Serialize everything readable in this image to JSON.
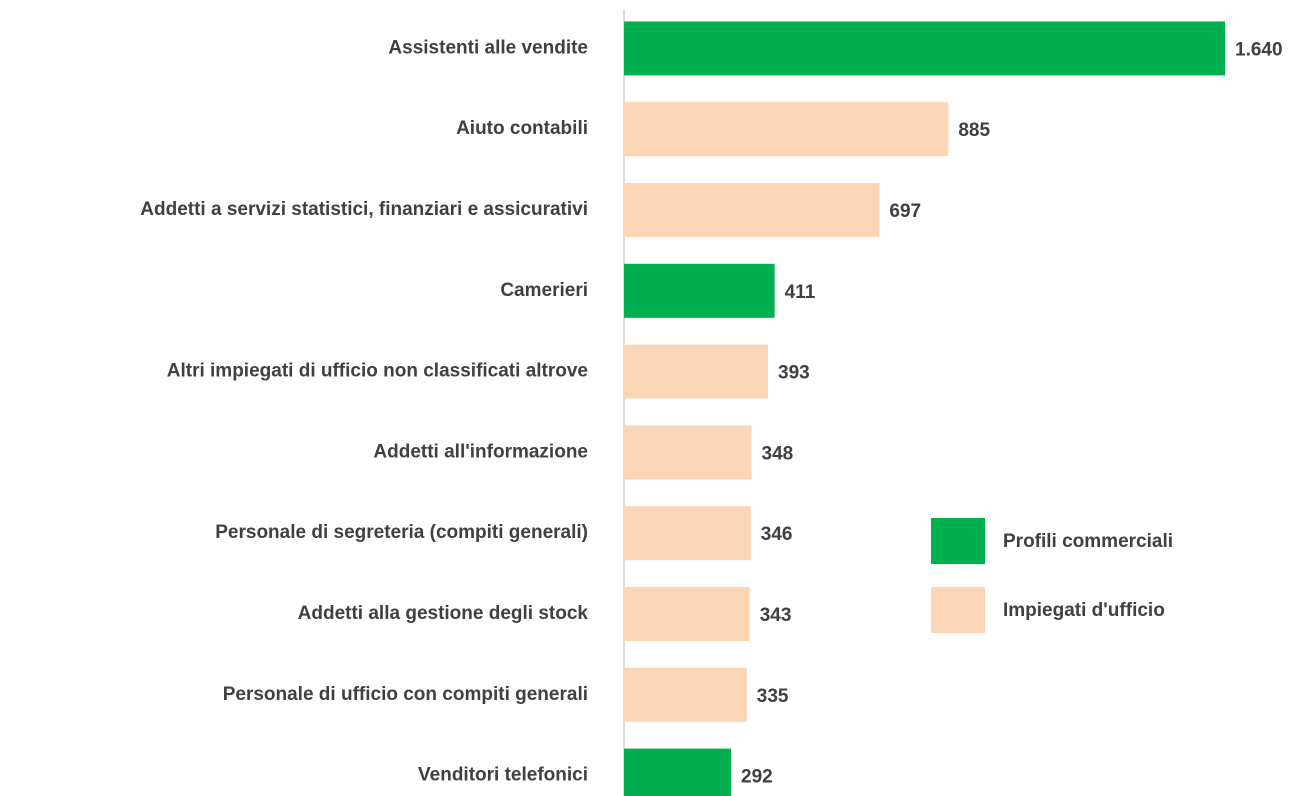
{
  "chart_data": {
    "type": "hbar",
    "categories": [
      "Assistenti alle vendite",
      "Aiuto contabili",
      "Addetti a servizi statistici, finanziari e assicurativi",
      "Camerieri",
      "Altri impiegati di ufficio non classificati altrove",
      "Addetti all'informazione",
      "Personale di segreteria (compiti generali)",
      "Addetti alla gestione degli stock",
      "Personale di ufficio con compiti generali",
      "Venditori telefonici"
    ],
    "values": [
      1640,
      885,
      697,
      411,
      393,
      348,
      346,
      343,
      335,
      292
    ],
    "value_labels": [
      "1.640",
      "885",
      "697",
      "411",
      "393",
      "348",
      "346",
      "343",
      "335",
      "292"
    ],
    "colors": [
      "#00b050",
      "#fbd5b5",
      "#fbd5b5",
      "#00b050",
      "#fbd5b5",
      "#fbd5b5",
      "#fbd5b5",
      "#fbd5b5",
      "#fbd5b5",
      "#00b050"
    ],
    "legend": [
      {
        "name": "Profili commerciali",
        "color": "#00b050"
      },
      {
        "name": "Impiegati d'ufficio",
        "color": "#fbd5b5"
      }
    ]
  }
}
